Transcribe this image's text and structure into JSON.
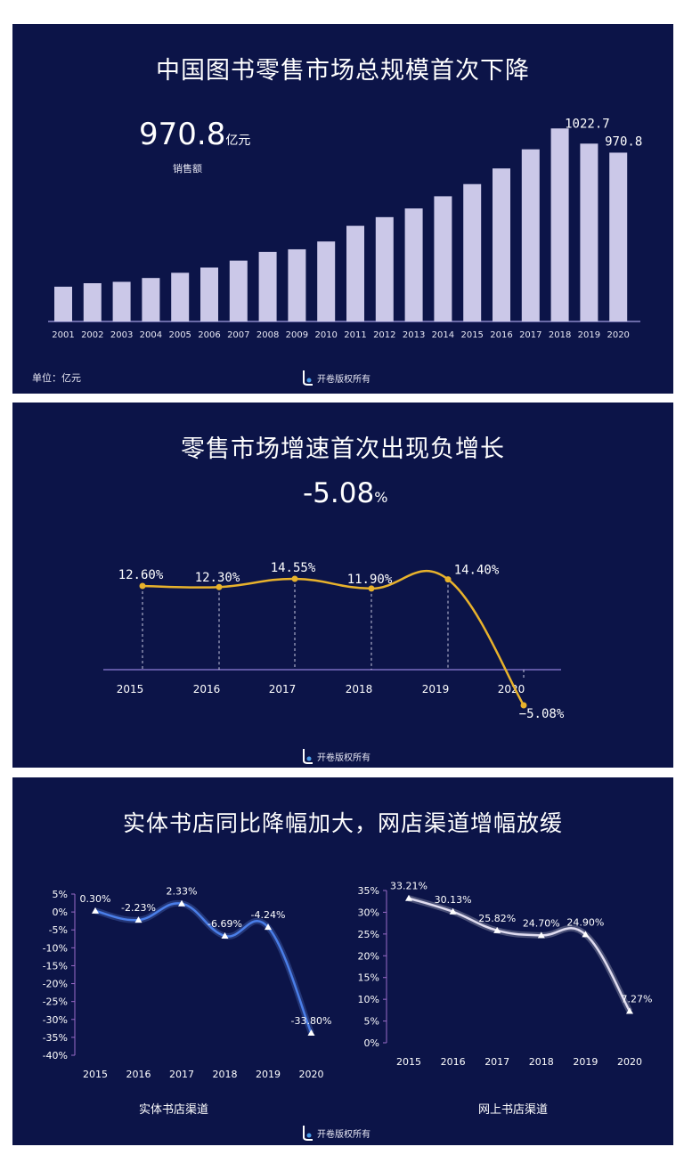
{
  "panel1": {
    "title": "中国图书零售市场总规模首次下降",
    "big_value": "970.8",
    "big_unit": "亿元",
    "big_label": "销售额",
    "unit_note": "单位：亿元",
    "logo_text": "开卷版权所有",
    "colors": {
      "bar": "#cbc8e8",
      "axis": "#8a86c8"
    }
  },
  "panel2": {
    "title": "零售市场增速首次出现负增长",
    "big_value": "-5.08",
    "big_unit": "%",
    "logo_text": "开卷版权所有",
    "colors": {
      "line": "#e8b22c",
      "axis": "#7a6cc0"
    }
  },
  "panel3": {
    "title": "实体书店同比降幅加大，网店渠道增幅放缓",
    "left_caption": "实体书店渠道",
    "right_caption": "网上书店渠道",
    "logo_text": "开卷版权所有",
    "colors": {
      "left_line": "#4a7ee8",
      "right_line": "#e0dcf0",
      "axis": "#9a6cc8"
    }
  },
  "chart_data": [
    {
      "type": "bar",
      "title": "中国图书零售市场总规模首次下降",
      "categories": [
        "2001",
        "2002",
        "2003",
        "2004",
        "2005",
        "2006",
        "2007",
        "2008",
        "2009",
        "2010",
        "2011",
        "2012",
        "2013",
        "2014",
        "2015",
        "2016",
        "2017",
        "2018",
        "2019",
        "2020"
      ],
      "values": [
        200,
        220,
        228,
        250,
        280,
        310,
        350,
        400,
        415,
        460,
        550,
        600,
        650,
        720,
        790,
        880,
        990,
        1110,
        1022.7,
        970.8
      ],
      "data_labels": {
        "18": "1022.7",
        "19": "970.8"
      },
      "ylim": [
        0,
        1060
      ],
      "grid": false
    },
    {
      "type": "line",
      "title": "零售市场增速首次出现负增长",
      "categories": [
        "2015",
        "2016",
        "2017",
        "2018",
        "2019",
        "2020"
      ],
      "values": [
        12.6,
        12.3,
        14.55,
        11.9,
        14.4,
        -5.08
      ],
      "data_labels": [
        "12.60%",
        "12.30%",
        "14.55%",
        "11.90%",
        "14.40%",
        "−5.08%"
      ],
      "ylim": [
        -6,
        17
      ],
      "grid": false
    },
    {
      "type": "line",
      "caption": "实体书店渠道",
      "categories": [
        "2015",
        "2016",
        "2017",
        "2018",
        "2019",
        "2020"
      ],
      "values": [
        0.3,
        -2.23,
        2.33,
        -6.69,
        -4.24,
        -33.8
      ],
      "data_labels": [
        "0.30%",
        "-2.23%",
        "2.33%",
        "-6.69%",
        "-4.24%",
        "-33.80%"
      ],
      "yticks": [
        "5%",
        "0%",
        "-5%",
        "-10%",
        "-15%",
        "-20%",
        "-25%",
        "-30%",
        "-35%",
        "-40%"
      ],
      "ylim": [
        -40,
        5
      ],
      "grid": false
    },
    {
      "type": "line",
      "caption": "网上书店渠道",
      "categories": [
        "2015",
        "2016",
        "2017",
        "2018",
        "2019",
        "2020"
      ],
      "values": [
        33.21,
        30.13,
        25.82,
        24.7,
        24.9,
        7.27
      ],
      "data_labels": [
        "33.21%",
        "30.13%",
        "25.82%",
        "24.70%",
        "24.90%",
        "7.27%"
      ],
      "yticks": [
        "35%",
        "30%",
        "25%",
        "20%",
        "15%",
        "10%",
        "5%",
        "0%"
      ],
      "ylim": [
        0,
        35
      ],
      "grid": false
    }
  ]
}
